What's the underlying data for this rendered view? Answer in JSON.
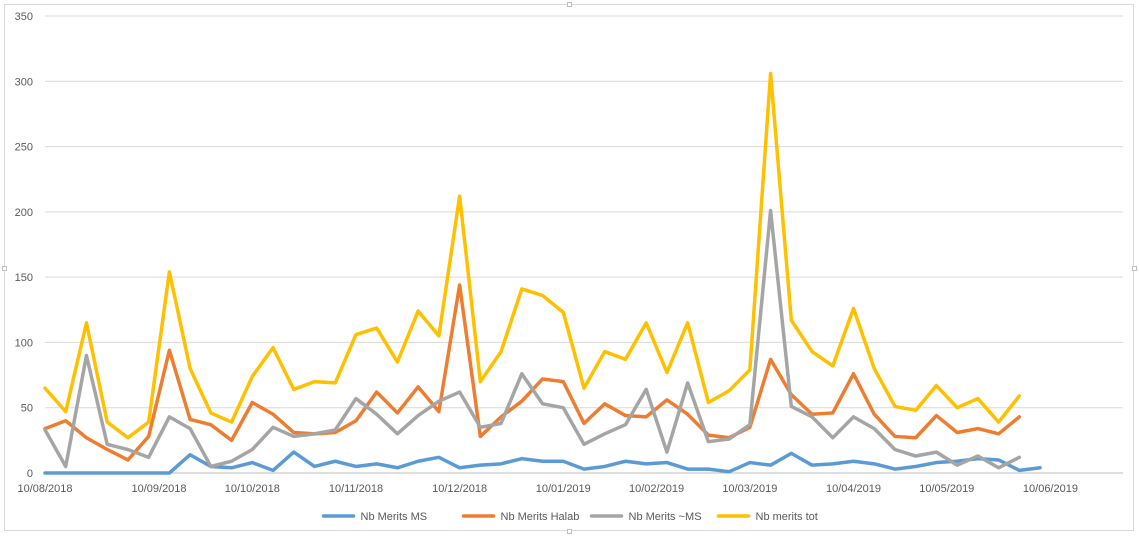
{
  "chart_data": {
    "type": "line",
    "title": "",
    "xlabel": "",
    "ylabel": "",
    "ylim": [
      0,
      350
    ],
    "y_ticks": [
      0,
      50,
      100,
      150,
      200,
      250,
      300,
      350
    ],
    "x_tick_labels": [
      "10/08/2018",
      "10/09/2018",
      "10/10/2018",
      "10/11/2018",
      "10/12/2018",
      "10/01/2019",
      "10/02/2019",
      "10/03/2019",
      "10/04/2019",
      "10/05/2019",
      "10/06/2019"
    ],
    "x_tick_weeks": [
      0,
      5.5,
      10,
      15,
      20,
      25,
      29.5,
      34,
      39,
      43.5,
      48.5
    ],
    "grid": "horizontal",
    "legend": "bottom",
    "x_weeks": [
      0,
      1,
      2,
      3,
      4,
      5,
      6,
      7,
      8,
      9,
      10,
      11,
      12,
      13,
      14,
      15,
      16,
      17,
      18,
      19,
      20,
      21,
      22,
      23,
      24,
      25,
      26,
      27,
      28,
      29,
      30,
      31,
      32,
      33,
      34,
      35,
      36,
      37,
      38,
      39,
      40,
      41,
      42,
      43,
      44,
      45,
      46,
      47,
      48,
      49,
      50,
      51,
      52
    ],
    "series": [
      {
        "name": "Nb Merits MS",
        "color": "#5b9bd5",
        "values": [
          0,
          0,
          0,
          0,
          0,
          0,
          0,
          14,
          5,
          4,
          8,
          2,
          16,
          5,
          9,
          5,
          7,
          4,
          9,
          12,
          4,
          6,
          7,
          11,
          9,
          9,
          3,
          5,
          9,
          7,
          8,
          3,
          3,
          1,
          8,
          6,
          15,
          6,
          7,
          9,
          7,
          3,
          5,
          8,
          9,
          11,
          10,
          2,
          4
        ]
      },
      {
        "name": "Nb Merits Halab",
        "color": "#ed7d31",
        "values": [
          34,
          40,
          27,
          18,
          10,
          28,
          94,
          41,
          37,
          25,
          54,
          45,
          31,
          30,
          31,
          40,
          62,
          46,
          66,
          47,
          144,
          28,
          43,
          55,
          72,
          70,
          38,
          53,
          44,
          43,
          56,
          45,
          29,
          27,
          35,
          87,
          60,
          45,
          46,
          76,
          45,
          28,
          27,
          44,
          31,
          34,
          30,
          43
        ]
      },
      {
        "name": "Nb Merits ~MS",
        "color": "#a5a5a5",
        "values": [
          33,
          5,
          90,
          22,
          18,
          12,
          43,
          34,
          5,
          9,
          18,
          35,
          28,
          30,
          33,
          57,
          45,
          30,
          44,
          55,
          62,
          35,
          38,
          76,
          53,
          50,
          22,
          30,
          37,
          64,
          16,
          69,
          24,
          26,
          37,
          201,
          51,
          43,
          27,
          43,
          34,
          18,
          13,
          16,
          6,
          13,
          4,
          12
        ]
      },
      {
        "name": "Nb merits tot",
        "color": "#ffc000",
        "values": [
          65,
          47,
          115,
          39,
          27,
          39,
          154,
          80,
          46,
          39,
          74,
          96,
          64,
          70,
          69,
          106,
          111,
          85,
          124,
          105,
          212,
          70,
          93,
          141,
          136,
          123,
          65,
          93,
          87,
          115,
          77,
          115,
          54,
          63,
          79,
          306,
          117,
          93,
          82,
          126,
          80,
          51,
          48,
          67,
          50,
          57,
          39,
          59
        ]
      }
    ]
  }
}
